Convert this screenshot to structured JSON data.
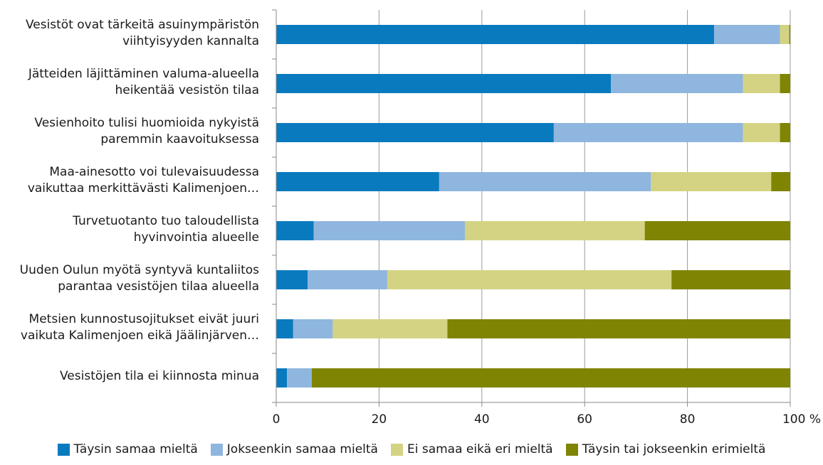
{
  "chart_data": {
    "type": "bar",
    "orientation": "horizontal",
    "stacked": true,
    "categories": [
      [
        "Vesistöt ovat tärkeitä asuinympäristön",
        "viihtyisyyden kannalta"
      ],
      [
        "Jätteiden läjittäminen valuma-alueella",
        "heikentää vesistön tilaa"
      ],
      [
        "Vesienhoito tulisi huomioida nykyistä",
        "paremmin kaavoituksessa"
      ],
      [
        "Maa-ainesotto voi tulevaisuudessa",
        "vaikuttaa merkittävästi Kalimenjoen…"
      ],
      [
        "Turvetuotanto tuo taloudellista",
        "hyvinvointia alueelle"
      ],
      [
        "Uuden Oulun myötä syntyvä kuntaliitos",
        "parantaa vesistöjen tilaa alueella"
      ],
      [
        "Metsien kunnostusojitukset eivät juuri",
        "vaikuta Kalimenjoen eikä Jäälinjärven…"
      ],
      [
        "Vesistöjen tila ei kiinnosta minua"
      ]
    ],
    "series": [
      {
        "name": "Täysin samaa mieltä",
        "color": "#0a7abf",
        "values": [
          85.2,
          65.1,
          54.0,
          31.7,
          7.3,
          6.1,
          3.3,
          2.1
        ]
      },
      {
        "name": "Jokseenkin samaa mieltä",
        "color": "#8fb6de",
        "values": [
          12.8,
          25.7,
          36.8,
          41.2,
          29.4,
          15.5,
          7.7,
          4.8
        ]
      },
      {
        "name": "Ei samaa eikä eri mieltä",
        "color": "#d4d383",
        "values": [
          1.8,
          7.2,
          7.2,
          23.4,
          35.0,
          55.3,
          22.3,
          0
        ]
      },
      {
        "name": "Täysin tai jokseenkin erimieltä",
        "color": "#7f8403",
        "values": [
          0.2,
          2.0,
          2.0,
          3.7,
          28.3,
          23.1,
          66.7,
          93.1
        ]
      }
    ],
    "xlim": [
      0,
      100
    ],
    "xticks": [
      "0",
      "20",
      "40",
      "60",
      "80",
      "100 %"
    ],
    "grid": true,
    "legend_position": "bottom"
  }
}
